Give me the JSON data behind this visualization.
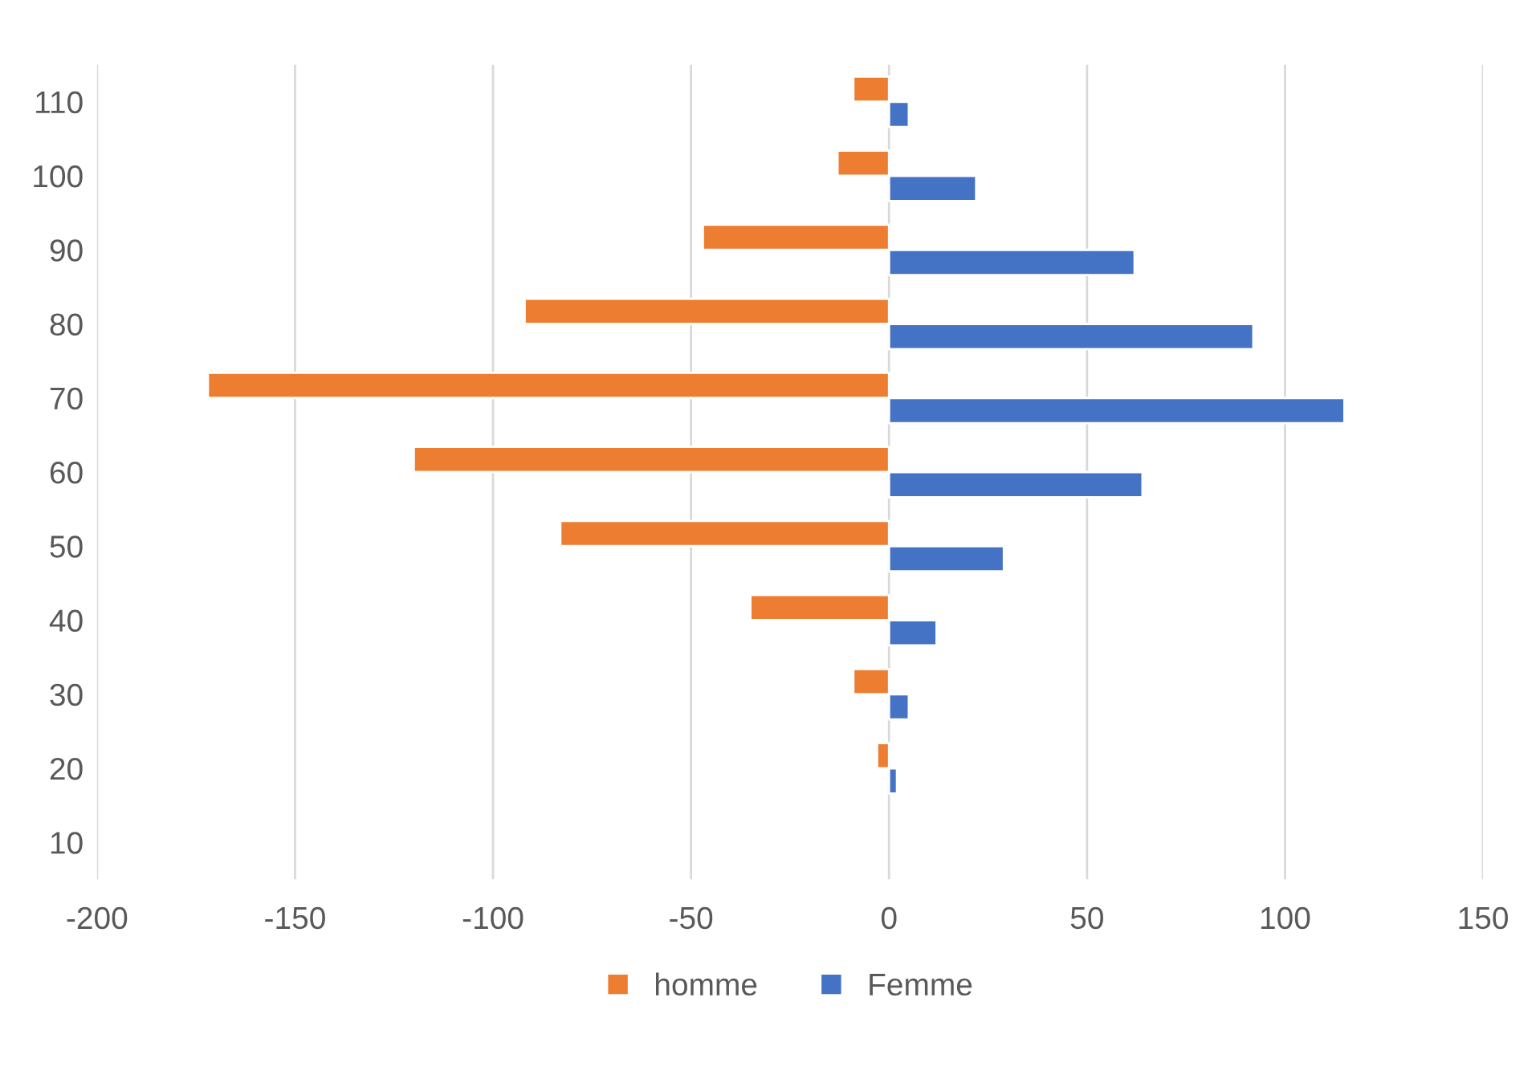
{
  "chart_data": {
    "type": "bar",
    "orientation": "horizontal",
    "categories": [
      "110",
      "100",
      "90",
      "80",
      "70",
      "60",
      "50",
      "40",
      "30",
      "20",
      "10"
    ],
    "series": [
      {
        "name": "homme",
        "color": "#ed7d31",
        "values": [
          -9,
          -13,
          -47,
          -92,
          -172,
          -120,
          -83,
          -35,
          -9,
          -3,
          null
        ]
      },
      {
        "name": "Femme",
        "color": "#4472c4",
        "values": [
          5,
          22,
          62,
          92,
          115,
          64,
          29,
          12,
          5,
          2,
          null
        ]
      }
    ],
    "xlim": [
      -200,
      150
    ],
    "xticks": [
      -200,
      -150,
      -100,
      -50,
      0,
      50,
      100,
      150
    ],
    "grid": "x",
    "legend": "bottom"
  }
}
